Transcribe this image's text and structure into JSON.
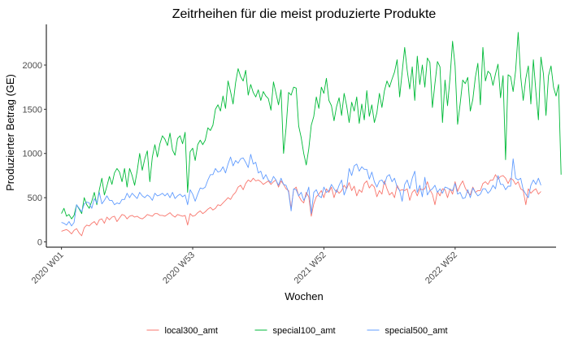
{
  "chart_data": {
    "type": "line",
    "title": "Zeitrheihen für die meist produzierte Produkte",
    "xlabel": "Wochen",
    "ylabel": "Produzierter Betrag (GE)",
    "x_ticks": [
      {
        "week_index": 0,
        "label": "2020 W01"
      },
      {
        "week_index": 52,
        "label": "2020 W53"
      },
      {
        "week_index": 104,
        "label": "2021 W52"
      },
      {
        "week_index": 156,
        "label": "2022 W52"
      }
    ],
    "y_ticks": [
      0,
      500,
      1000,
      1500,
      2000
    ],
    "xlim": [
      -6,
      196
    ],
    "ylim": [
      -60,
      2460
    ],
    "x_tick_rotation": 45,
    "grid": false,
    "legend_position": "bottom",
    "series": [
      {
        "name": "local300_amt",
        "color": "#F8766D",
        "values": [
          120,
          130,
          140,
          120,
          90,
          130,
          150,
          100,
          70,
          160,
          190,
          180,
          210,
          230,
          190,
          250,
          260,
          210,
          280,
          250,
          280,
          290,
          230,
          270,
          310,
          300,
          260,
          290,
          300,
          280,
          290,
          270,
          260,
          280,
          310,
          300,
          290,
          320,
          320,
          300,
          300,
          290,
          310,
          330,
          300,
          280,
          310,
          300,
          290,
          300,
          190,
          320,
          290,
          300,
          330,
          350,
          320,
          340,
          370,
          390,
          360,
          380,
          420,
          410,
          440,
          470,
          500,
          480,
          530,
          560,
          620,
          640,
          590,
          660,
          700,
          680,
          720,
          690,
          700,
          680,
          650,
          670,
          690,
          650,
          680,
          700,
          620,
          690,
          650,
          600,
          580,
          380,
          590,
          620,
          520,
          470,
          440,
          560,
          510,
          290,
          430,
          510,
          540,
          580,
          500,
          600,
          560,
          620,
          500,
          590,
          550,
          580,
          640,
          600,
          670,
          580,
          630,
          520,
          590,
          560,
          660,
          690,
          610,
          650,
          620,
          510,
          580,
          540,
          690,
          600,
          530,
          560,
          500,
          640,
          580,
          590,
          580,
          600,
          470,
          560,
          590,
          520,
          600,
          590,
          600,
          680,
          590,
          540,
          420,
          570,
          520,
          600,
          590,
          500,
          600,
          540,
          680,
          570,
          640,
          690,
          610,
          560,
          530,
          620,
          560,
          580,
          580,
          660,
          680,
          650,
          700,
          700,
          760,
          710,
          740,
          750,
          720,
          660,
          720,
          700,
          650,
          680,
          600,
          580,
          420,
          600,
          550,
          580,
          600,
          540,
          570
        ]
      },
      {
        "name": "special100_amt",
        "color": "#00BA38",
        "values": [
          320,
          380,
          290,
          310,
          260,
          300,
          420,
          370,
          320,
          500,
          420,
          380,
          460,
          560,
          420,
          590,
          720,
          530,
          630,
          740,
          650,
          780,
          830,
          790,
          680,
          830,
          620,
          830,
          750,
          640,
          800,
          1000,
          810,
          940,
          1030,
          680,
          960,
          1100,
          960,
          1110,
          1200,
          1160,
          1090,
          1230,
          1040,
          980,
          1170,
          1200,
          1110,
          1240,
          560,
          1020,
          1060,
          920,
          1100,
          1150,
          1100,
          1150,
          1290,
          1260,
          1320,
          1500,
          1550,
          1480,
          1650,
          1510,
          1820,
          1700,
          1560,
          1800,
          1960,
          1870,
          1820,
          1940,
          1660,
          1780,
          1690,
          1640,
          1720,
          1600,
          1700,
          1650,
          1620,
          1490,
          1810,
          1680,
          1550,
          1720,
          1000,
          1290,
          1690,
          1660,
          1750,
          1740,
          1310,
          1180,
          1000,
          870,
          1050,
          1320,
          1420,
          1640,
          1510,
          1750,
          1680,
          1850,
          1600,
          1540,
          1370,
          1530,
          1630,
          1430,
          1680,
          1540,
          1350,
          1580,
          1480,
          1640,
          1340,
          1560,
          1380,
          1710,
          1420,
          1550,
          1350,
          1460,
          1680,
          1520,
          1710,
          1820,
          1750,
          1840,
          1920,
          2060,
          1640,
          1920,
          2200,
          1940,
          1730,
          1980,
          1600,
          2100,
          1780,
          2000,
          1750,
          2080,
          2030,
          1520,
          1790,
          2040,
          1980,
          1350,
          1830,
          1540,
          1860,
          2270,
          1990,
          1330,
          1560,
          1830,
          1790,
          1860,
          1480,
          1610,
          1860,
          2020,
          1550,
          2200,
          1820,
          1930,
          1900,
          1770,
          1900,
          2010,
          1630,
          1880,
          930,
          1890,
          1870,
          1700,
          1940,
          2370,
          1870,
          1600,
          1850,
          1990,
          1560,
          2060,
          1700,
          1380,
          2090,
          1900,
          1430,
          1880,
          1990,
          1750,
          1650,
          1780,
          760
        ]
      },
      {
        "name": "special500_amt",
        "color": "#619CFF",
        "values": [
          220,
          210,
          190,
          230,
          180,
          220,
          420,
          380,
          340,
          430,
          450,
          440,
          380,
          490,
          440,
          560,
          430,
          470,
          520,
          470,
          470,
          420,
          440,
          430,
          480,
          480,
          550,
          500,
          550,
          520,
          490,
          560,
          520,
          500,
          530,
          510,
          470,
          550,
          520,
          530,
          550,
          520,
          550,
          500,
          560,
          490,
          520,
          540,
          510,
          530,
          420,
          590,
          540,
          460,
          540,
          610,
          600,
          620,
          700,
          760,
          760,
          830,
          790,
          800,
          850,
          780,
          880,
          960,
          860,
          920,
          890,
          940,
          950,
          900,
          840,
          990,
          880,
          900,
          780,
          800,
          710,
          760,
          700,
          670,
          740,
          700,
          640,
          720,
          650,
          640,
          560,
          350,
          600,
          590,
          520,
          560,
          470,
          520,
          620,
          320,
          560,
          590,
          520,
          500,
          620,
          560,
          580,
          650,
          600,
          560,
          640,
          700,
          530,
          610,
          830,
          750,
          860,
          880,
          800,
          850,
          820,
          820,
          710,
          790,
          680,
          620,
          690,
          700,
          650,
          740,
          760,
          680,
          720,
          620,
          580,
          460,
          650,
          700,
          600,
          720,
          800,
          560,
          640,
          510,
          730,
          530,
          580,
          600,
          640,
          560,
          600,
          550,
          620,
          610,
          590,
          580,
          660,
          540,
          560,
          490,
          500,
          590,
          500,
          610,
          560,
          520,
          540,
          600,
          600,
          550,
          580,
          640,
          600,
          750,
          650,
          650,
          590,
          630,
          630,
          940,
          720,
          700,
          720,
          590,
          540,
          500,
          640,
          700,
          650,
          720,
          640
        ]
      }
    ]
  }
}
